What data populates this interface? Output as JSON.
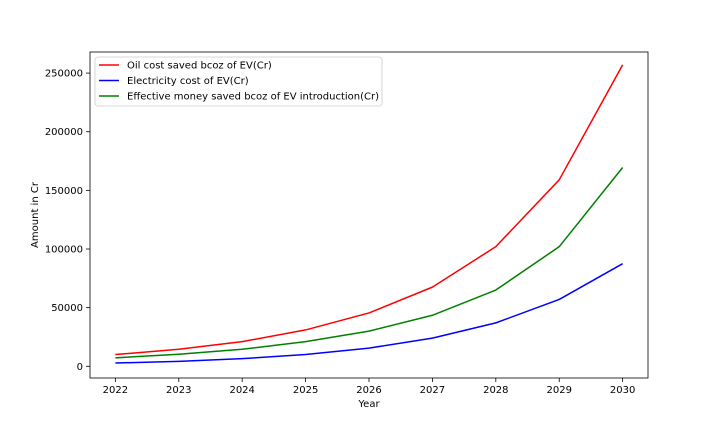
{
  "chart_data": {
    "type": "line",
    "title": "",
    "xlabel": "Year",
    "ylabel": "Amount in Cr",
    "x": [
      2022,
      2023,
      2024,
      2025,
      2026,
      2027,
      2028,
      2029,
      2030
    ],
    "xlim": [
      2021.6,
      2030.4
    ],
    "ylim": [
      -10000,
      268000
    ],
    "yticks": [
      0,
      50000,
      100000,
      150000,
      200000,
      250000
    ],
    "grid": false,
    "legend_position": "top-left",
    "series": [
      {
        "name": "Oil cost saved bcoz of EV(Cr)",
        "color": "#ff0000",
        "values": [
          10000,
          14500,
          21000,
          31000,
          45500,
          67500,
          102000,
          159000,
          257000
        ]
      },
      {
        "name": "Electricity cost of EV(Cr)",
        "color": "#0000ff",
        "values": [
          2800,
          4200,
          6500,
          10000,
          15500,
          24000,
          37000,
          57000,
          87500
        ]
      },
      {
        "name": "Effective money saved bcoz of EV introduction(Cr)",
        "color": "#008000",
        "values": [
          7200,
          10300,
          14500,
          21000,
          30000,
          43500,
          65000,
          102000,
          169500
        ]
      }
    ]
  }
}
